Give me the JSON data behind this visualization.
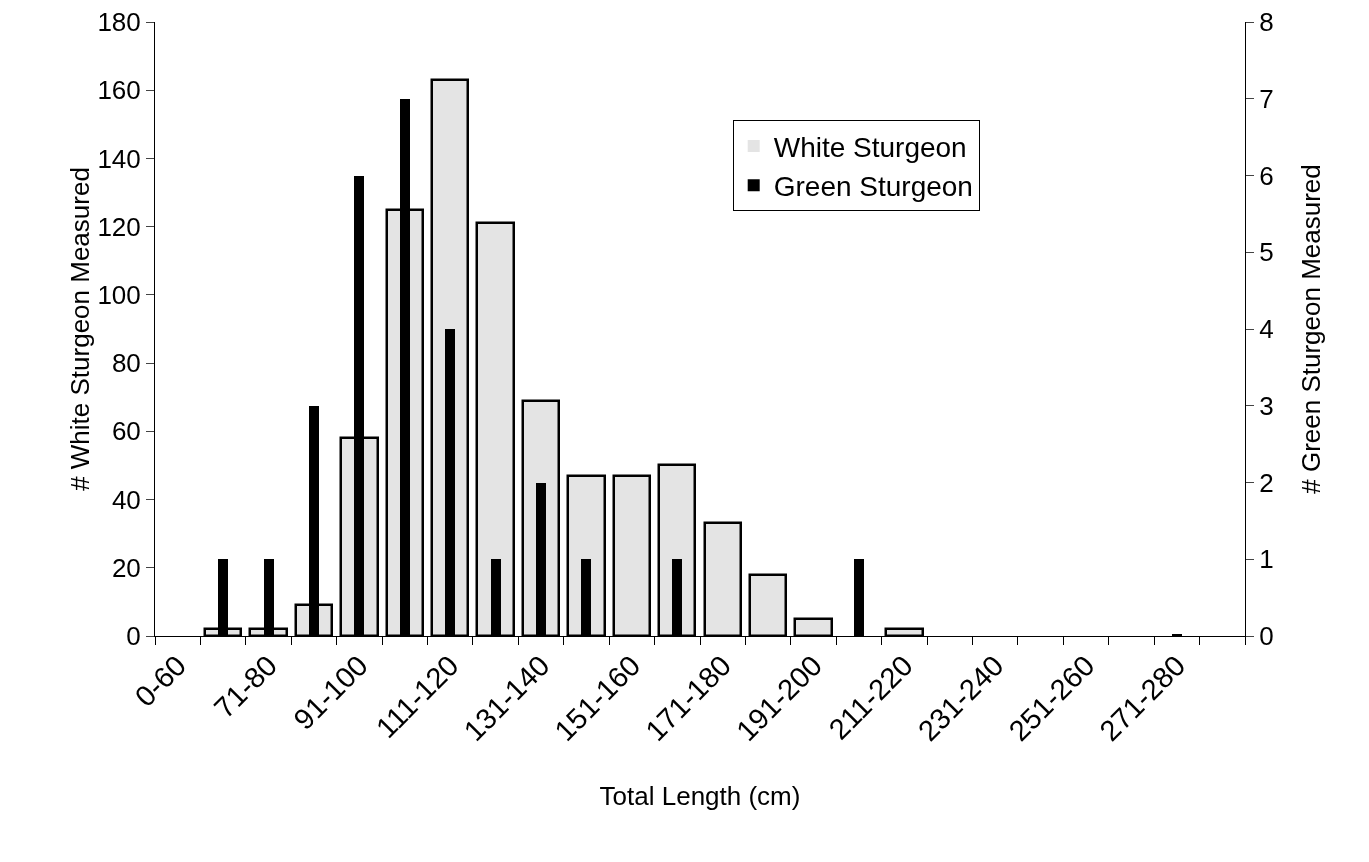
{
  "chart_data": {
    "type": "bar",
    "xlabel": "Total Length (cm)",
    "ylabel": "# White Sturgeon Measured",
    "y2label": "# Green Sturgeon Measured",
    "categories": [
      "0-60",
      null,
      "71-80",
      null,
      "91-100",
      null,
      "111-120",
      null,
      "131-140",
      null,
      "151-160",
      null,
      "171-180",
      null,
      "191-200",
      null,
      "211-220",
      null,
      "231-240",
      null,
      "251-260",
      null,
      "271-280",
      null
    ],
    "series": [
      {
        "name": "White Sturgeon",
        "color": "#e4e4e4",
        "values": [
          0,
          2,
          2,
          9,
          58,
          125,
          163,
          121,
          69,
          47,
          47,
          50,
          33,
          18,
          5,
          0,
          2,
          0,
          0,
          0,
          0,
          0,
          0,
          0
        ]
      },
      {
        "name": "Green Sturgeon",
        "color": "#000000",
        "axis": "y2",
        "values": [
          0,
          1,
          1,
          3,
          6,
          7,
          4,
          1,
          2,
          1,
          0,
          1,
          0,
          0,
          0,
          1,
          0,
          0,
          0,
          0,
          0,
          0,
          0.03,
          0
        ]
      }
    ],
    "ylim": [
      0,
      180
    ],
    "yticks": [
      0,
      20,
      40,
      60,
      80,
      100,
      120,
      140,
      160,
      180
    ],
    "y2lim": [
      0,
      8
    ],
    "y2ticks": [
      0,
      1,
      2,
      3,
      4,
      5,
      6,
      7,
      8
    ],
    "legend": "top right"
  }
}
